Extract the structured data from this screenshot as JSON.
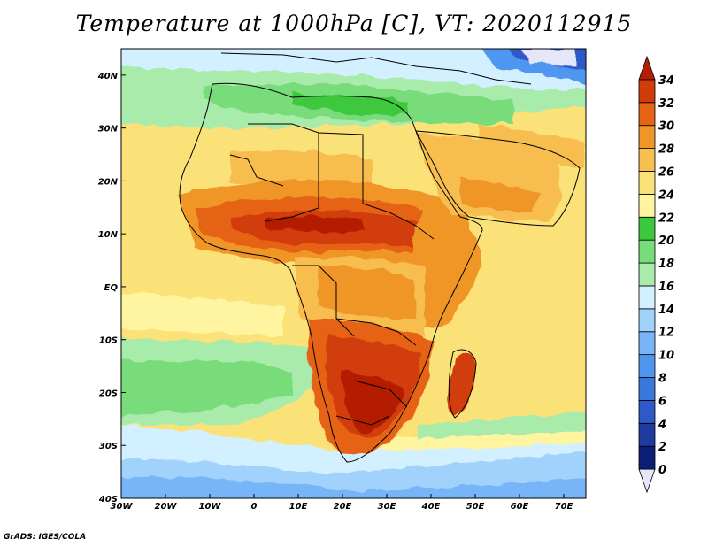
{
  "title": "Temperature at 1000hPa [C], VT: 2020112915",
  "credit": "GrADS: IGES/COLA",
  "map": {
    "region": "Africa",
    "variable": "Temperature at 1000hPa",
    "units": "C",
    "valid_time": "2020112915",
    "lon_range": [
      -30,
      75
    ],
    "lat_range": [
      -40,
      45
    ],
    "lon_ticks": [
      {
        "value": -30,
        "label": "30W"
      },
      {
        "value": -20,
        "label": "20W"
      },
      {
        "value": -10,
        "label": "10W"
      },
      {
        "value": 0,
        "label": "0"
      },
      {
        "value": 10,
        "label": "10E"
      },
      {
        "value": 20,
        "label": "20E"
      },
      {
        "value": 30,
        "label": "30E"
      },
      {
        "value": 40,
        "label": "40E"
      },
      {
        "value": 50,
        "label": "50E"
      },
      {
        "value": 60,
        "label": "60E"
      },
      {
        "value": 70,
        "label": "70E"
      }
    ],
    "lat_ticks": [
      {
        "value": 40,
        "label": "40N"
      },
      {
        "value": 30,
        "label": "30N"
      },
      {
        "value": 20,
        "label": "20N"
      },
      {
        "value": 10,
        "label": "10N"
      },
      {
        "value": 0,
        "label": "EQ"
      },
      {
        "value": -10,
        "label": "10S"
      },
      {
        "value": -20,
        "label": "20S"
      },
      {
        "value": -30,
        "label": "30S"
      },
      {
        "value": -40,
        "label": "40S"
      }
    ]
  },
  "colorbar": {
    "levels": [
      "0",
      "2",
      "4",
      "6",
      "8",
      "10",
      "12",
      "14",
      "16",
      "18",
      "20",
      "22",
      "24",
      "26",
      "28",
      "30",
      "32",
      "34"
    ],
    "colors": [
      "#e6e6fa",
      "#0c1e78",
      "#1e3ca0",
      "#2d5ac8",
      "#3a78dc",
      "#5096f0",
      "#78b4f8",
      "#a0d2fc",
      "#d2f0ff",
      "#a8ebaa",
      "#78dc7a",
      "#3cc83c",
      "#fff5a0",
      "#fae178",
      "#f7be50",
      "#f09628",
      "#e66414",
      "#d23c0a",
      "#b41e05"
    ]
  }
}
